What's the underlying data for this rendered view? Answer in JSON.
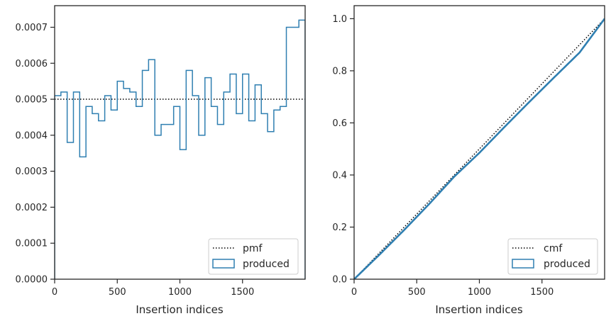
{
  "colors": {
    "series": "#2f7fb1",
    "reference": "#000000",
    "axes": "#262626"
  },
  "chart_data": [
    {
      "type": "histogram-step",
      "xlabel": "Insertion indices",
      "ylabel": "",
      "xlim": [
        0,
        2000
      ],
      "ylim": [
        0,
        0.00076
      ],
      "x_ticks": [
        0,
        500,
        1000,
        1500
      ],
      "x_tick_labels": [
        "0",
        "500",
        "1000",
        "1500"
      ],
      "y_ticks": [
        0,
        0.0001,
        0.0002,
        0.0003,
        0.0004,
        0.0005,
        0.0006,
        0.0007
      ],
      "y_tick_labels": [
        "0.0000",
        "0.0001",
        "0.0002",
        "0.0003",
        "0.0004",
        "0.0005",
        "0.0006",
        "0.0007"
      ],
      "bin_width": 50,
      "bin_edges_start": 0,
      "series": [
        {
          "name": "produced",
          "values": [
            0.00051,
            0.00052,
            0.00038,
            0.00052,
            0.00034,
            0.00048,
            0.00046,
            0.00044,
            0.00051,
            0.00047,
            0.00055,
            0.00053,
            0.00052,
            0.00048,
            0.00058,
            0.00061,
            0.0004,
            0.00043,
            0.00043,
            0.00048,
            0.00036,
            0.00058,
            0.00051,
            0.0004,
            0.00056,
            0.00048,
            0.00043,
            0.00052,
            0.00057,
            0.00046,
            0.00057,
            0.00044,
            0.00054,
            0.00046,
            0.00041,
            0.00047,
            0.00048,
            0.0007,
            0.0007,
            0.00072
          ]
        },
        {
          "name": "pmf",
          "constant": 0.0005
        }
      ],
      "legend": {
        "position": "bottom-right",
        "entries": [
          "pmf",
          "produced"
        ]
      },
      "grid": false
    },
    {
      "type": "line",
      "xlabel": "Insertion indices",
      "ylabel": "",
      "xlim": [
        0,
        2000
      ],
      "ylim": [
        0,
        1.05
      ],
      "x_ticks": [
        0,
        500,
        1000,
        1500
      ],
      "x_tick_labels": [
        "0",
        "500",
        "1000",
        "1500"
      ],
      "y_ticks": [
        0,
        0.2,
        0.4,
        0.6,
        0.8,
        1.0
      ],
      "y_tick_labels": [
        "0.0",
        "0.2",
        "0.4",
        "0.6",
        "0.8",
        "1.0"
      ],
      "series": [
        {
          "name": "produced",
          "x": [
            0,
            200,
            400,
            600,
            800,
            1000,
            1200,
            1400,
            1600,
            1800,
            2000
          ],
          "y": [
            0,
            0.093,
            0.189,
            0.289,
            0.394,
            0.485,
            0.584,
            0.681,
            0.776,
            0.87,
            1.0
          ]
        },
        {
          "name": "cmf",
          "x": [
            0,
            2000
          ],
          "y": [
            0,
            1.0
          ]
        }
      ],
      "legend": {
        "position": "bottom-right",
        "entries": [
          "cmf",
          "produced"
        ]
      },
      "grid": false
    }
  ]
}
